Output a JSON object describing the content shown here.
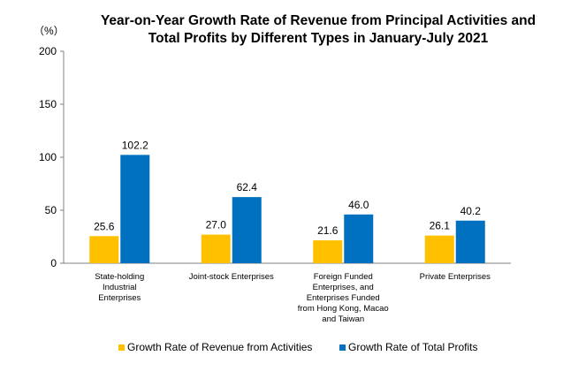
{
  "chart_data": {
    "type": "bar",
    "title_line1": "Year-on-Year Growth Rate of Revenue from Principal Activities  and",
    "title_line2": "Total Profits by Different Types in January-July 2021",
    "unit": "（%）",
    "ylim": [
      0,
      200
    ],
    "yticks": [
      "0",
      "50",
      "100",
      "150",
      "200"
    ],
    "grid": false,
    "legend_position": "bottom",
    "categories": [
      [
        "State-holding",
        "Industrial",
        "Enterprises"
      ],
      [
        "Joint-stock Enterprises"
      ],
      [
        "Foreign Funded",
        "Enterprises, and",
        "Enterprises Funded",
        "from Hong Kong, Macao",
        "and Taiwan"
      ],
      [
        "Private Enterprises"
      ]
    ],
    "series": [
      {
        "name": "Growth Rate of Revenue from Activities",
        "color": "#FFC000",
        "values": [
          25.6,
          27.0,
          21.6,
          26.1
        ],
        "labels": [
          "25.6",
          "27.0",
          "21.6",
          "26.1"
        ]
      },
      {
        "name": "Growth Rate of Total Profits",
        "color": "#0070C0",
        "values": [
          102.2,
          62.4,
          46.0,
          40.2
        ],
        "labels": [
          "102.2",
          "62.4",
          "46.0",
          "40.2"
        ]
      }
    ]
  }
}
